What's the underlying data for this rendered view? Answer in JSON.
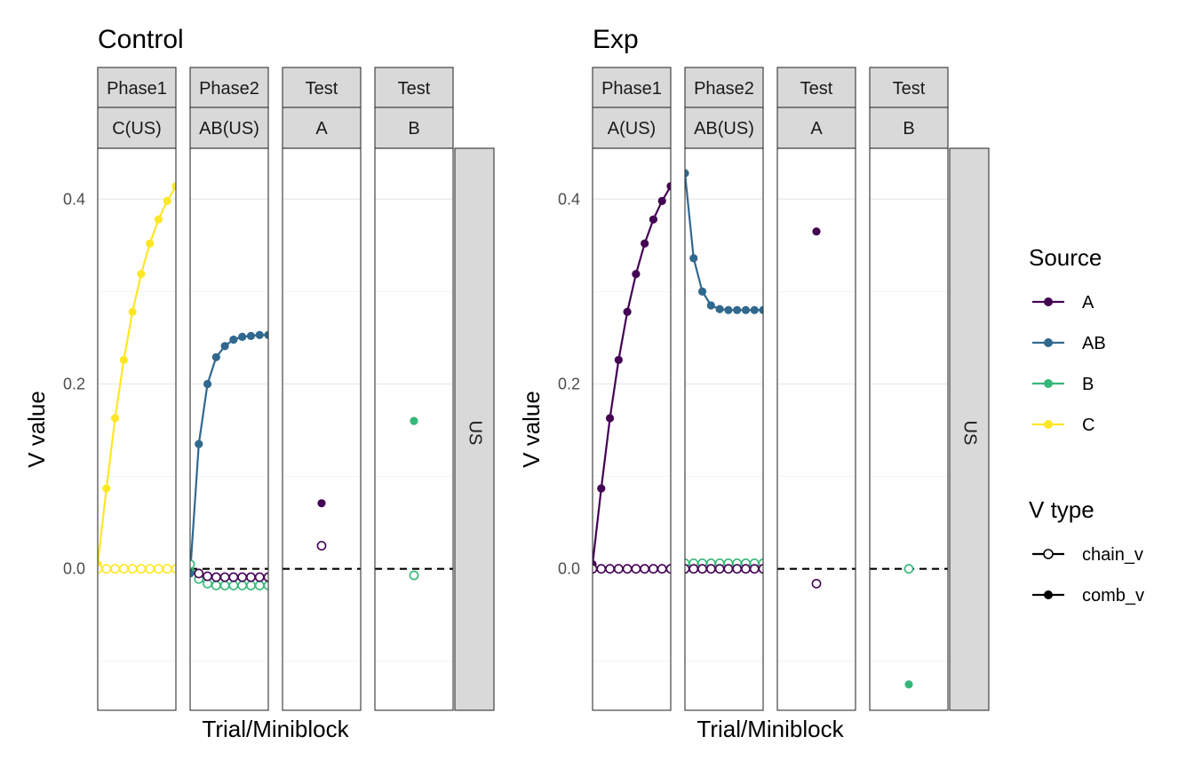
{
  "chart_data": [
    {
      "type": "line",
      "title": "Control",
      "xlabel": "Trial/Miniblock",
      "ylabel": "V value",
      "ylim": [
        -0.153,
        0.455
      ],
      "y_ticks": [
        0.0,
        0.2,
        0.4
      ],
      "y_tick_labels": [
        "0.0",
        "0.2",
        "0.4"
      ],
      "reference_line_y": 0,
      "grid": true,
      "side_strip": "US",
      "facets": [
        {
          "top": "Phase1",
          "bottom": "C(US)",
          "xlim": [
            1,
            10
          ],
          "series": [
            {
              "source": "C",
              "vtype": "comb_v",
              "x": [
                1,
                2,
                3,
                4,
                5,
                6,
                7,
                8,
                9,
                10
              ],
              "y": [
                0.005,
                0.087,
                0.163,
                0.226,
                0.278,
                0.319,
                0.352,
                0.378,
                0.398,
                0.414
              ]
            },
            {
              "source": "C",
              "vtype": "chain_v",
              "x": [
                1,
                2,
                3,
                4,
                5,
                6,
                7,
                8,
                9,
                10
              ],
              "y": [
                0,
                0,
                0,
                0,
                0,
                0,
                0,
                0,
                0,
                0
              ]
            }
          ]
        },
        {
          "top": "Phase2",
          "bottom": "AB(US)",
          "xlim": [
            1,
            10
          ],
          "series": [
            {
              "source": "AB",
              "vtype": "comb_v",
              "x": [
                1,
                2,
                3,
                4,
                5,
                6,
                7,
                8,
                9,
                10
              ],
              "y": [
                -0.005,
                0.135,
                0.2,
                0.229,
                0.241,
                0.248,
                0.251,
                0.252,
                0.253,
                0.253
              ]
            },
            {
              "source": "B",
              "vtype": "chain_v",
              "x": [
                1,
                2,
                3,
                4,
                5,
                6,
                7,
                8,
                9,
                10
              ],
              "y": [
                0.005,
                -0.011,
                -0.016,
                -0.018,
                -0.018,
                -0.018,
                -0.018,
                -0.018,
                -0.018,
                -0.018
              ]
            },
            {
              "source": "A",
              "vtype": "chain_v",
              "x": [
                2,
                3,
                4,
                5,
                6,
                7,
                8,
                9,
                10
              ],
              "y": [
                -0.005,
                -0.008,
                -0.009,
                -0.009,
                -0.009,
                -0.009,
                -0.009,
                -0.009,
                -0.009
              ]
            }
          ]
        },
        {
          "top": "Test",
          "bottom": "A",
          "xlim": [
            0.6,
            1.4
          ],
          "series": [
            {
              "source": "A",
              "vtype": "comb_v",
              "x": [
                1
              ],
              "y": [
                0.071
              ]
            },
            {
              "source": "A",
              "vtype": "chain_v",
              "x": [
                1
              ],
              "y": [
                0.025
              ]
            }
          ]
        },
        {
          "top": "Test",
          "bottom": "B",
          "xlim": [
            0.6,
            1.4
          ],
          "series": [
            {
              "source": "B",
              "vtype": "comb_v",
              "x": [
                1
              ],
              "y": [
                0.16
              ]
            },
            {
              "source": "B",
              "vtype": "chain_v",
              "x": [
                1
              ],
              "y": [
                -0.007
              ]
            }
          ]
        }
      ]
    },
    {
      "type": "line",
      "title": "Exp",
      "xlabel": "Trial/Miniblock",
      "ylabel": "V value",
      "ylim": [
        -0.153,
        0.455
      ],
      "y_ticks": [
        0.0,
        0.2,
        0.4
      ],
      "y_tick_labels": [
        "0.0",
        "0.2",
        "0.4"
      ],
      "reference_line_y": 0,
      "grid": true,
      "side_strip": "US",
      "facets": [
        {
          "top": "Phase1",
          "bottom": "A(US)",
          "xlim": [
            1,
            10
          ],
          "series": [
            {
              "source": "A",
              "vtype": "comb_v",
              "x": [
                1,
                2,
                3,
                4,
                5,
                6,
                7,
                8,
                9,
                10
              ],
              "y": [
                0.005,
                0.087,
                0.163,
                0.226,
                0.278,
                0.319,
                0.352,
                0.378,
                0.398,
                0.414
              ]
            },
            {
              "source": "A",
              "vtype": "chain_v",
              "x": [
                1,
                2,
                3,
                4,
                5,
                6,
                7,
                8,
                9,
                10
              ],
              "y": [
                0,
                0,
                0,
                0,
                0,
                0,
                0,
                0,
                0,
                0
              ]
            }
          ]
        },
        {
          "top": "Phase2",
          "bottom": "AB(US)",
          "xlim": [
            1,
            10
          ],
          "series": [
            {
              "source": "AB",
              "vtype": "comb_v",
              "x": [
                1,
                2,
                3,
                4,
                5,
                6,
                7,
                8,
                9,
                10
              ],
              "y": [
                0.428,
                0.336,
                0.3,
                0.285,
                0.281,
                0.28,
                0.28,
                0.28,
                0.28,
                0.28
              ]
            },
            {
              "source": "B",
              "vtype": "chain_v",
              "x": [
                1,
                2,
                3,
                4,
                5,
                6,
                7,
                8,
                9,
                10
              ],
              "y": [
                0.006,
                0.006,
                0.006,
                0.006,
                0.006,
                0.006,
                0.006,
                0.006,
                0.006,
                0.006
              ]
            },
            {
              "source": "A",
              "vtype": "chain_v",
              "x": [
                1,
                2,
                3,
                4,
                5,
                6,
                7,
                8,
                9,
                10
              ],
              "y": [
                0,
                0,
                0,
                0,
                0,
                0,
                0,
                0,
                0,
                0
              ]
            }
          ]
        },
        {
          "top": "Test",
          "bottom": "A",
          "xlim": [
            0.6,
            1.4
          ],
          "series": [
            {
              "source": "A",
              "vtype": "comb_v",
              "x": [
                1
              ],
              "y": [
                0.365
              ]
            },
            {
              "source": "A",
              "vtype": "chain_v",
              "x": [
                1
              ],
              "y": [
                -0.016
              ]
            }
          ]
        },
        {
          "top": "Test",
          "bottom": "B",
          "xlim": [
            0.6,
            1.4
          ],
          "series": [
            {
              "source": "B",
              "vtype": "comb_v",
              "x": [
                1
              ],
              "y": [
                -0.125
              ]
            },
            {
              "source": "B",
              "vtype": "chain_v",
              "x": [
                1
              ],
              "y": [
                0
              ]
            }
          ]
        }
      ]
    }
  ],
  "legend": {
    "source_title": "Source",
    "source_items": [
      {
        "label": "A",
        "color": "#440154"
      },
      {
        "label": "AB",
        "color": "#31688E"
      },
      {
        "label": "B",
        "color": "#35B779"
      },
      {
        "label": "C",
        "color": "#FDE725"
      }
    ],
    "vtype_title": "V type",
    "vtype_items": [
      {
        "label": "chain_v",
        "marker": "open-circle"
      },
      {
        "label": "comb_v",
        "marker": "filled-circle"
      }
    ]
  }
}
